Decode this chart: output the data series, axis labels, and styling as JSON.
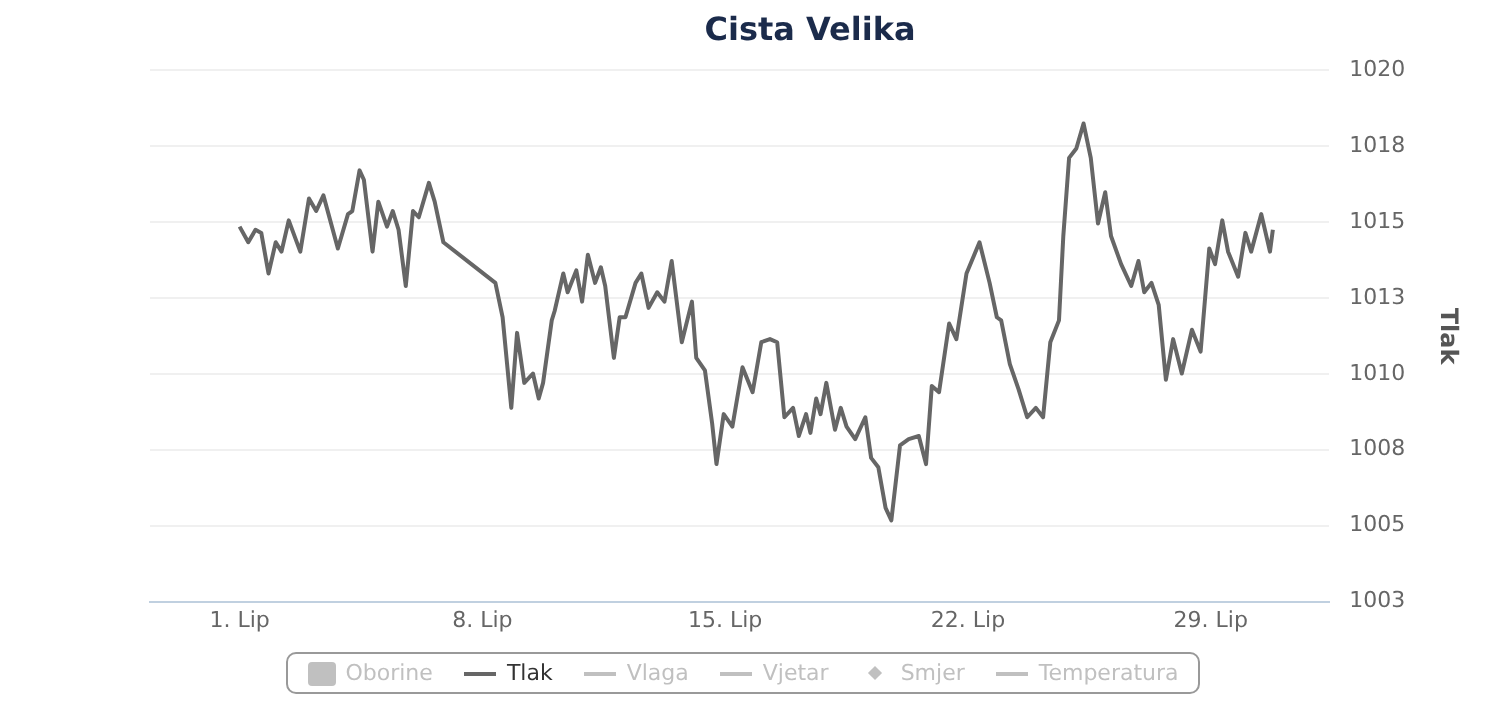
{
  "chart_data": {
    "type": "line",
    "title": "Cista Velika",
    "ylabel": "Tlak",
    "xlim": [
      "--05-29T10:00",
      "--07-02T10:00"
    ],
    "xticks": [
      {
        "value": "--06-01",
        "label": "1. Lip"
      },
      {
        "value": "--06-08",
        "label": "8. Lip"
      },
      {
        "value": "--06-15",
        "label": "15. Lip"
      },
      {
        "value": "--06-22",
        "label": "22. Lip"
      },
      {
        "value": "--06-29",
        "label": "29. Lip"
      }
    ],
    "ylim": [
      1003,
      1020
    ],
    "yticks": [
      1003,
      {
        "value": 1005.43,
        "label": "1005"
      },
      {
        "value": 1007.86,
        "label": "1008"
      },
      {
        "value": 1010.29,
        "label": "1010"
      },
      {
        "value": 1012.71,
        "label": "1013"
      },
      {
        "value": 1015.14,
        "label": "1015"
      },
      {
        "value": 1017.57,
        "label": "1018"
      },
      1020
    ],
    "grid": "y",
    "legend": "bottom",
    "series": [
      {
        "name": "Oborine",
        "type": "bar"
      },
      {
        "name": "Tlak",
        "color": "#666666",
        "x": [
          "--06-01T00:00",
          "--06-01T06:00",
          "--06-01T11:00",
          "--06-01T15:00",
          "--06-01T20:00",
          "--06-02T01:00",
          "--06-02T05:00",
          "--06-02T10:00",
          "--06-02T18:00",
          "--06-03T00:00",
          "--06-03T05:00",
          "--06-03T10:00",
          "--06-03T20:00",
          "--06-04T03:00",
          "--06-04T06:00",
          "--06-04T11:00",
          "--06-04T14:00",
          "--06-04T20:00",
          "--06-05T00:00",
          "--06-05T06:00",
          "--06-05T10:00",
          "--06-05T14:00",
          "--06-05T19:00",
          "--06-06T00:00",
          "--06-06T04:00",
          "--06-06T11:00",
          "--06-06T15:00",
          "--06-06T21:00",
          "--06-08T09:00",
          "--06-08T14:00",
          "--06-08T20:00",
          "--06-09T00:00",
          "--06-09T05:00",
          "--06-09T11:00",
          "--06-09T15:00",
          "--06-09T18:00",
          "--06-10T00:00",
          "--06-10T02:00",
          "--06-10T08:00",
          "--06-10T11:00",
          "--06-10T17:00",
          "--06-10T21:00",
          "--06-11T01:00",
          "--06-11T06:00",
          "--06-11T10:00",
          "--06-11T13:00",
          "--06-11T19:00",
          "--06-11T23:00",
          "--06-12T03:00",
          "--06-12T10:00",
          "--06-12T14:00",
          "--06-12T19:00",
          "--06-13T01:00",
          "--06-13T06:00",
          "--06-13T11:00",
          "--06-13T18:00",
          "--06-14T01:00",
          "--06-14T04:00",
          "--06-14T10:00",
          "--06-14T15:00",
          "--06-14T18:00",
          "--06-14T23:00",
          "--06-15T05:00",
          "--06-15T12:00",
          "--06-15T19:00",
          "--06-16T01:00",
          "--06-16T07:00",
          "--06-16T12:00",
          "--06-16T17:00",
          "--06-16T23:00",
          "--06-17T03:00",
          "--06-17T08:00",
          "--06-17T11:00",
          "--06-17T15:00",
          "--06-17T18:00",
          "--06-17T22:00",
          "--06-18T04:00",
          "--06-18T08:00",
          "--06-18T12:00",
          "--06-18T18:00",
          "--06-19T01:00",
          "--06-19T05:00",
          "--06-19T10:00",
          "--06-19T15:00",
          "--06-19T19:00",
          "--06-20T01:00",
          "--06-20T07:00",
          "--06-20T14:00",
          "--06-20T19:00",
          "--06-20T23:00",
          "--06-21T04:00",
          "--06-21T11:00",
          "--06-21T16:00",
          "--06-21T23:00",
          "--06-22T08:00",
          "--06-22T15:00",
          "--06-22T20:00",
          "--06-22T23:00",
          "--06-23T05:00",
          "--06-23T11:00",
          "--06-23T17:00",
          "--06-23T23:00",
          "--06-24T04:00",
          "--06-24T09:00",
          "--06-24T15:00",
          "--06-24T18:00",
          "--06-24T22:00",
          "--06-25T03:00",
          "--06-25T08:00",
          "--06-25T13:00",
          "--06-25T18:00",
          "--06-25T23:00",
          "--06-26T03:00",
          "--06-26T10:00",
          "--06-26T17:00",
          "--06-26T22:00",
          "--06-27T02:00",
          "--06-27T07:00",
          "--06-27T12:00",
          "--06-27T17:00",
          "--06-27T22:00",
          "--06-28T04:00",
          "--06-28T11:00",
          "--06-28T17:00",
          "--06-28T23:00",
          "--06-29T03:00",
          "--06-29T08:00",
          "--06-29T12:00",
          "--06-29T19:00",
          "--06-30T00:00",
          "--06-30T04:00",
          "--06-30T11:00",
          "--06-30T17:00",
          "--06-30T19:00"
        ],
        "values": [
          1015.0,
          1014.5,
          1014.9,
          1014.8,
          1013.5,
          1014.5,
          1014.2,
          1015.2,
          1014.2,
          1015.9,
          1015.5,
          1016.0,
          1014.3,
          1015.4,
          1015.5,
          1016.8,
          1016.5,
          1014.2,
          1015.8,
          1015.0,
          1015.5,
          1014.9,
          1013.1,
          1015.5,
          1015.3,
          1016.4,
          1015.8,
          1014.5,
          1013.2,
          1012.1,
          1009.2,
          1011.6,
          1010.0,
          1010.3,
          1009.5,
          1010.0,
          1012.0,
          1012.3,
          1013.5,
          1012.9,
          1013.6,
          1012.6,
          1014.1,
          1013.2,
          1013.7,
          1013.1,
          1010.8,
          1012.1,
          1012.1,
          1013.2,
          1013.5,
          1012.4,
          1012.9,
          1012.6,
          1013.9,
          1011.3,
          1012.6,
          1010.8,
          1010.4,
          1008.7,
          1007.4,
          1009.0,
          1008.6,
          1010.5,
          1009.7,
          1011.3,
          1011.4,
          1011.3,
          1008.9,
          1009.2,
          1008.3,
          1009.0,
          1008.4,
          1009.5,
          1009.0,
          1010.0,
          1008.5,
          1009.2,
          1008.6,
          1008.2,
          1008.9,
          1007.6,
          1007.3,
          1006.0,
          1005.6,
          1008.0,
          1008.2,
          1008.3,
          1007.4,
          1009.9,
          1009.7,
          1011.9,
          1011.4,
          1013.5,
          1014.5,
          1013.2,
          1012.1,
          1012.0,
          1010.6,
          1009.8,
          1008.9,
          1009.2,
          1008.9,
          1011.3,
          1012.0,
          1014.7,
          1017.2,
          1017.5,
          1018.3,
          1017.2,
          1015.1,
          1016.1,
          1014.7,
          1013.8,
          1013.1,
          1013.9,
          1012.9,
          1013.2,
          1012.5,
          1010.1,
          1011.4,
          1010.3,
          1011.7,
          1011.0,
          1014.3,
          1013.8,
          1015.2,
          1014.2,
          1013.4,
          1014.8,
          1014.2,
          1015.4,
          1014.2,
          1014.9
        ]
      },
      {
        "name": "Vlaga"
      },
      {
        "name": "Vjetar"
      },
      {
        "name": "Smjer",
        "type": "scatter"
      },
      {
        "name": "Temperatura"
      }
    ]
  }
}
